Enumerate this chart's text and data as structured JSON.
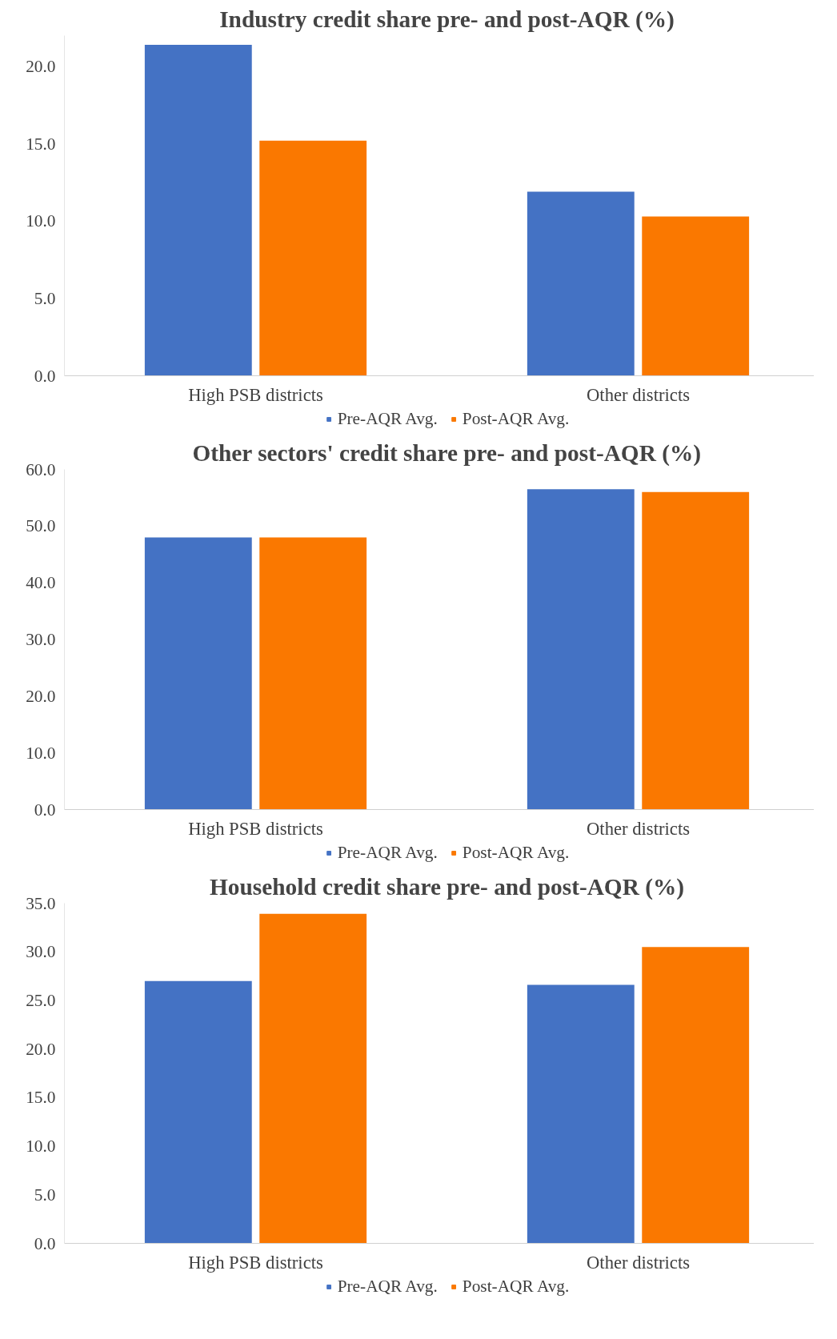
{
  "chart_data": [
    {
      "type": "bar",
      "title": "Industry credit share pre- and post-AQR (%)",
      "categories": [
        "High PSB districts",
        "Other districts"
      ],
      "series": [
        {
          "name": "Pre-AQR Avg.",
          "color": "#4472c4",
          "values": [
            21.4,
            11.9
          ]
        },
        {
          "name": "Post-AQR Avg.",
          "color": "#fa7800",
          "values": [
            15.2,
            10.3
          ]
        }
      ],
      "ylim": [
        0,
        22
      ],
      "yticks": [
        {
          "value": 0,
          "label": "0.0"
        },
        {
          "value": 5,
          "label": "5.0"
        },
        {
          "value": 10,
          "label": "10.0"
        },
        {
          "value": 15,
          "label": "15.0"
        },
        {
          "value": 20,
          "label": "20.0"
        }
      ],
      "grid": false,
      "legend": "bottom"
    },
    {
      "type": "bar",
      "title": "Other sectors' credit share pre- and post-AQR (%)",
      "categories": [
        "High PSB districts",
        "Other districts"
      ],
      "series": [
        {
          "name": "Pre-AQR Avg.",
          "color": "#4472c4",
          "values": [
            48,
            56.5
          ]
        },
        {
          "name": "Post-AQR Avg.",
          "color": "#fa7800",
          "values": [
            48,
            56
          ]
        }
      ],
      "ylim": [
        0,
        60
      ],
      "yticks": [
        {
          "value": 0,
          "label": "0.0"
        },
        {
          "value": 10,
          "label": "10.0"
        },
        {
          "value": 20,
          "label": "20.0"
        },
        {
          "value": 30,
          "label": "30.0"
        },
        {
          "value": 40,
          "label": "40.0"
        },
        {
          "value": 50,
          "label": "50.0"
        },
        {
          "value": 60,
          "label": "60.0"
        }
      ],
      "grid": false,
      "legend": "bottom"
    },
    {
      "type": "bar",
      "title": "Household credit share pre- and post-AQR (%)",
      "categories": [
        "High PSB districts",
        "Other districts"
      ],
      "series": [
        {
          "name": "Pre-AQR Avg.",
          "color": "#4472c4",
          "values": [
            27.0,
            26.6
          ]
        },
        {
          "name": "Post-AQR Avg.",
          "color": "#fa7800",
          "values": [
            33.9,
            30.5
          ]
        }
      ],
      "ylim": [
        0,
        35
      ],
      "yticks": [
        {
          "value": 0,
          "label": "0.0"
        },
        {
          "value": 5,
          "label": "5.0"
        },
        {
          "value": 10,
          "label": "10.0"
        },
        {
          "value": 15,
          "label": "15.0"
        },
        {
          "value": 20,
          "label": "20.0"
        },
        {
          "value": 25,
          "label": "25.0"
        },
        {
          "value": 30,
          "label": "30.0"
        },
        {
          "value": 35,
          "label": "35.0"
        }
      ],
      "grid": false,
      "legend": "bottom"
    }
  ]
}
